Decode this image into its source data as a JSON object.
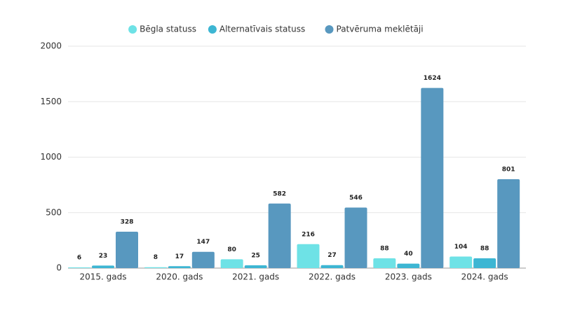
{
  "chart_data": {
    "type": "bar",
    "categories": [
      "2015. gads",
      "2020. gads",
      "2021. gads",
      "2022. gads",
      "2023. gads",
      "2024. gads"
    ],
    "series": [
      {
        "name": "Bēgla statuss",
        "color": "#6ee2e6",
        "values": [
          6,
          8,
          80,
          216,
          88,
          104
        ]
      },
      {
        "name": "Alternatīvais statuss",
        "color": "#3db6d3",
        "values": [
          23,
          17,
          25,
          27,
          40,
          88
        ]
      },
      {
        "name": "Patvēruma meklētāji",
        "color": "#5898bf",
        "values": [
          328,
          147,
          582,
          546,
          1624,
          801
        ]
      }
    ],
    "ylim": [
      0,
      2000
    ],
    "yticks": [
      0,
      500,
      1000,
      1500,
      2000
    ],
    "grid": true,
    "legend": "top"
  }
}
